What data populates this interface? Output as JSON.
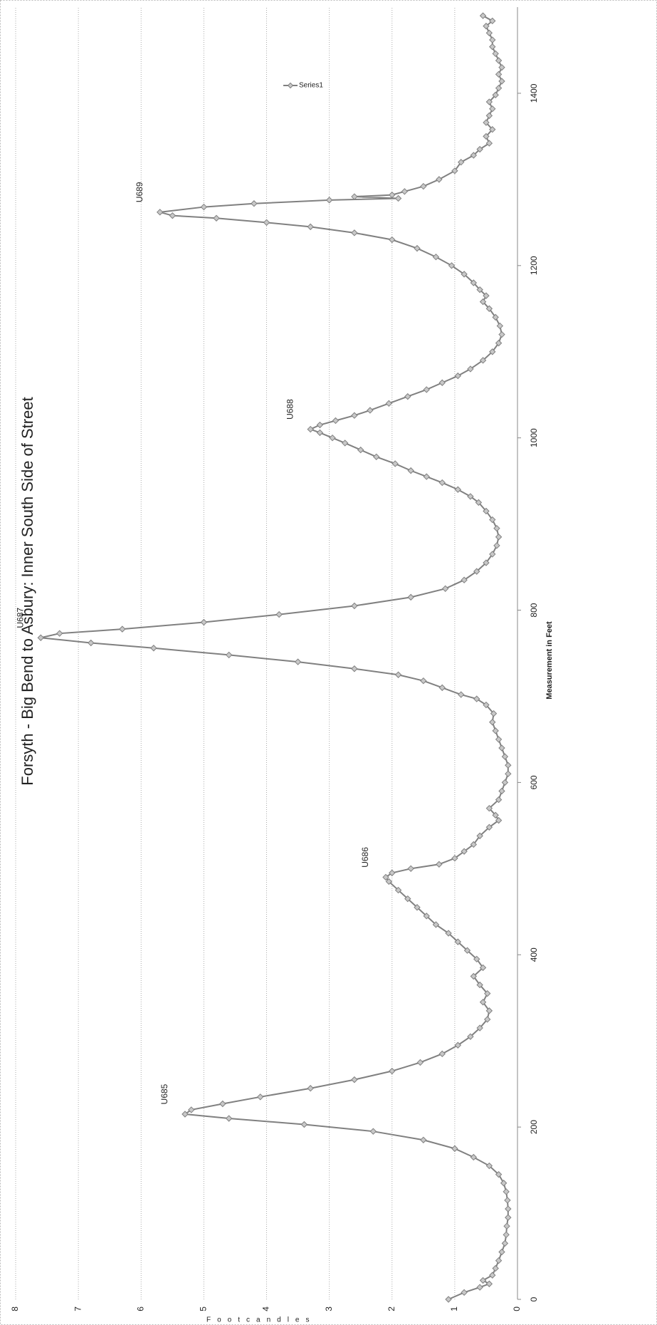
{
  "chart_data": {
    "type": "line",
    "title": "Forsyth - Big Bend to Asbury: Inner South Side of Street",
    "x_label": "Measurement in Feet",
    "y_label": "Footcandles",
    "xlim": [
      0,
      1500
    ],
    "xticks": [
      0,
      200,
      400,
      600,
      800,
      1000,
      1200,
      1400
    ],
    "ylim": [
      0,
      8
    ],
    "yticks": [
      0,
      1,
      2,
      3,
      4,
      5,
      6,
      7,
      8
    ],
    "grid": true,
    "legend": "right",
    "x": [
      0,
      8,
      14,
      18,
      22,
      28,
      36,
      45,
      55,
      65,
      75,
      85,
      95,
      105,
      115,
      125,
      135,
      145,
      155,
      165,
      175,
      185,
      195,
      203,
      210,
      215,
      220,
      227,
      235,
      245,
      255,
      265,
      275,
      285,
      295,
      305,
      315,
      325,
      335,
      345,
      355,
      365,
      375,
      385,
      395,
      405,
      415,
      425,
      435,
      445,
      455,
      465,
      475,
      485,
      490,
      495,
      500,
      505,
      512,
      520,
      528,
      538,
      548,
      556,
      562,
      570,
      580,
      590,
      600,
      610,
      620,
      630,
      640,
      650,
      660,
      670,
      680,
      690,
      697,
      702,
      710,
      718,
      725,
      732,
      740,
      748,
      756,
      762,
      768,
      773,
      778,
      786,
      795,
      805,
      815,
      825,
      835,
      845,
      855,
      865,
      875,
      885,
      895,
      905,
      915,
      925,
      932,
      940,
      948,
      955,
      962,
      970,
      978,
      986,
      994,
      1000,
      1006,
      1010,
      1015,
      1020,
      1026,
      1032,
      1040,
      1048,
      1056,
      1064,
      1072,
      1080,
      1090,
      1100,
      1110,
      1120,
      1130,
      1140,
      1150,
      1158,
      1165,
      1172,
      1180,
      1190,
      1200,
      1210,
      1220,
      1230,
      1238,
      1245,
      1250,
      1255,
      1258,
      1262,
      1268,
      1272,
      1276,
      1278,
      1280,
      1282,
      1286,
      1292,
      1300,
      1310,
      1320,
      1328,
      1335,
      1342,
      1350,
      1358,
      1366,
      1374,
      1382,
      1390,
      1398,
      1406,
      1414,
      1422,
      1430,
      1438,
      1446,
      1454,
      1462,
      1470,
      1478,
      1484,
      1490
    ],
    "series": [
      {
        "name": "Series1",
        "color": "#808080",
        "values": [
          1.1,
          0.85,
          0.6,
          0.45,
          0.55,
          0.4,
          0.35,
          0.3,
          0.25,
          0.2,
          0.18,
          0.17,
          0.15,
          0.15,
          0.16,
          0.18,
          0.22,
          0.3,
          0.45,
          0.7,
          1.0,
          1.5,
          2.3,
          3.4,
          4.6,
          5.3,
          5.2,
          4.7,
          4.1,
          3.3,
          2.6,
          2.0,
          1.55,
          1.2,
          0.95,
          0.75,
          0.6,
          0.48,
          0.45,
          0.55,
          0.48,
          0.6,
          0.7,
          0.55,
          0.65,
          0.8,
          0.95,
          1.1,
          1.3,
          1.45,
          1.6,
          1.75,
          1.9,
          2.05,
          2.1,
          2.0,
          1.7,
          1.25,
          1.0,
          0.85,
          0.7,
          0.6,
          0.45,
          0.3,
          0.35,
          0.45,
          0.3,
          0.25,
          0.2,
          0.15,
          0.15,
          0.2,
          0.25,
          0.3,
          0.35,
          0.4,
          0.38,
          0.5,
          0.65,
          0.9,
          1.2,
          1.5,
          1.9,
          2.6,
          3.5,
          4.6,
          5.8,
          6.8,
          7.6,
          7.3,
          6.3,
          5.0,
          3.8,
          2.6,
          1.7,
          1.15,
          0.85,
          0.65,
          0.5,
          0.4,
          0.33,
          0.3,
          0.33,
          0.4,
          0.5,
          0.62,
          0.75,
          0.95,
          1.2,
          1.45,
          1.7,
          1.95,
          2.25,
          2.5,
          2.75,
          2.95,
          3.15,
          3.3,
          3.15,
          2.9,
          2.6,
          2.35,
          2.05,
          1.75,
          1.45,
          1.2,
          0.95,
          0.75,
          0.55,
          0.4,
          0.3,
          0.25,
          0.28,
          0.35,
          0.45,
          0.55,
          0.5,
          0.6,
          0.7,
          0.85,
          1.05,
          1.3,
          1.6,
          2.0,
          2.6,
          3.3,
          4.0,
          4.8,
          5.5,
          5.7,
          5.0,
          4.2,
          3.0,
          1.9,
          2.6,
          2.0,
          1.8,
          1.5,
          1.25,
          1.0,
          0.9,
          0.7,
          0.6,
          0.45,
          0.5,
          0.4,
          0.5,
          0.45,
          0.4,
          0.45,
          0.35,
          0.3,
          0.25,
          0.3,
          0.25,
          0.3,
          0.35,
          0.4,
          0.4,
          0.45,
          0.5,
          0.4,
          0.55
        ]
      }
    ],
    "annotations": [
      {
        "text": "U685",
        "x": 215,
        "y": 5.3
      },
      {
        "text": "U686",
        "x": 490,
        "y": 2.1
      },
      {
        "text": "U687",
        "x": 768,
        "y": 7.6
      },
      {
        "text": "U688",
        "x": 1010,
        "y": 3.3
      },
      {
        "text": "U689",
        "x": 1262,
        "y": 5.7
      }
    ]
  }
}
